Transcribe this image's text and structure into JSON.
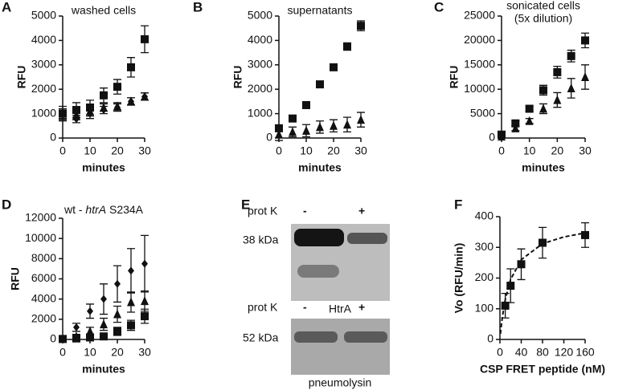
{
  "chart_data": [
    {
      "type": "scatter",
      "panel": "A",
      "title": "washed cells",
      "x_label": "minutes",
      "y_label": "RFU",
      "x": [
        0,
        5,
        10,
        15,
        20,
        25,
        30
      ],
      "xlim": [
        0,
        30
      ],
      "xticks": [
        0,
        10,
        20,
        30
      ],
      "ylim": [
        0,
        5000
      ],
      "yticks": [
        0,
        1000,
        2000,
        3000,
        4000,
        5000
      ],
      "series": [
        {
          "marker": "diamond",
          "color": "#111111",
          "values": [
            950,
            780,
            1000,
            1150,
            1250,
            1500,
            1700
          ],
          "errors": [
            200,
            150,
            200,
            150,
            150,
            150,
            150
          ]
        },
        {
          "marker": "triangle",
          "color": "#111111",
          "values": [
            1000,
            950,
            1100,
            1250,
            1300,
            1500,
            1700
          ],
          "errors": [
            200,
            200,
            200,
            150,
            150,
            150,
            150
          ]
        },
        {
          "marker": "square",
          "color": "#111111",
          "values": [
            1000,
            1150,
            1250,
            1750,
            2100,
            2900,
            4050
          ],
          "errors": [
            300,
            300,
            300,
            300,
            300,
            400,
            550
          ]
        }
      ]
    },
    {
      "type": "scatter",
      "panel": "B",
      "title": "supernatants",
      "x_label": "minutes",
      "y_label": "RFU",
      "x": [
        0,
        5,
        10,
        15,
        20,
        25,
        30
      ],
      "xlim": [
        0,
        30
      ],
      "xticks": [
        0,
        10,
        20,
        30
      ],
      "ylim": [
        0,
        5000
      ],
      "yticks": [
        0,
        1000,
        2000,
        3000,
        4000,
        5000
      ],
      "series": [
        {
          "marker": "triangle",
          "color": "#111111",
          "values": [
            150,
            250,
            300,
            450,
            500,
            550,
            750
          ],
          "errors": [
            250,
            200,
            250,
            250,
            250,
            300,
            300
          ]
        },
        {
          "marker": "square",
          "color": "#111111",
          "values": [
            400,
            800,
            1350,
            2200,
            2900,
            3750,
            4600
          ],
          "errors": [
            100,
            100,
            100,
            100,
            100,
            150,
            200
          ]
        }
      ]
    },
    {
      "type": "scatter",
      "panel": "C",
      "title": "sonicated cells",
      "subtitle": "(5x dilution)",
      "x_label": "minutes",
      "y_label": "RFU",
      "x": [
        0,
        5,
        10,
        15,
        20,
        25,
        30
      ],
      "xlim": [
        0,
        30
      ],
      "xticks": [
        0,
        10,
        20,
        30
      ],
      "ylim": [
        0,
        25000
      ],
      "yticks": [
        0,
        5000,
        10000,
        15000,
        20000,
        25000
      ],
      "series": [
        {
          "marker": "triangle",
          "color": "#111111",
          "values": [
            300,
            2000,
            3500,
            6000,
            7800,
            10200,
            12500
          ],
          "errors": [
            300,
            500,
            500,
            1000,
            1500,
            2000,
            2500
          ]
        },
        {
          "marker": "square",
          "color": "#111111",
          "values": [
            700,
            3000,
            6000,
            9800,
            13500,
            16800,
            20000
          ],
          "errors": [
            300,
            500,
            500,
            1000,
            1200,
            1200,
            1500
          ]
        }
      ]
    },
    {
      "type": "scatter",
      "panel": "D",
      "title": [
        "wt - ",
        "htrA",
        " S234A"
      ],
      "title_styles": [
        "normal",
        "italic",
        "normal"
      ],
      "x_label": "minutes",
      "y_label": "RFU",
      "x": [
        0,
        5,
        10,
        15,
        20,
        25,
        30
      ],
      "xlim": [
        0,
        30
      ],
      "xticks": [
        0,
        10,
        20,
        30
      ],
      "ylim": [
        0,
        12000
      ],
      "yticks": [
        0,
        2000,
        4000,
        6000,
        8000,
        10000,
        12000
      ],
      "series": [
        {
          "marker": "diamond",
          "color": "#111111",
          "values": [
            100,
            1200,
            2800,
            4000,
            5500,
            6800,
            7500
          ],
          "errors": [
            100,
            400,
            700,
            1500,
            1800,
            2200,
            2800
          ]
        },
        {
          "marker": "triangle",
          "color": "#111111",
          "values": [
            50,
            300,
            800,
            1500,
            2500,
            3700,
            3800
          ],
          "errors": [
            50,
            200,
            400,
            600,
            800,
            1000,
            1000
          ]
        },
        {
          "marker": "square",
          "color": "#111111",
          "values": [
            50,
            100,
            200,
            300,
            800,
            1400,
            2300
          ],
          "errors": [
            50,
            100,
            200,
            300,
            400,
            500,
            700
          ]
        }
      ]
    },
    {
      "type": "scatter",
      "panel": "F",
      "x_label": "CSP FRET peptide (nM)",
      "y_label": "Vo (RFU/min)",
      "x": [
        10,
        20,
        40,
        80,
        160
      ],
      "xlim": [
        0,
        160
      ],
      "xticks": [
        0,
        40,
        80,
        120,
        160
      ],
      "ylim": [
        0,
        400
      ],
      "yticks": [
        0,
        100,
        200,
        300,
        400
      ],
      "series": [
        {
          "marker": "square",
          "color": "#111111",
          "values": [
            110,
            175,
            245,
            315,
            340
          ],
          "errors": [
            40,
            55,
            50,
            50,
            40
          ]
        }
      ],
      "fit_curve": {
        "x": [
          1,
          3,
          5,
          10,
          20,
          40,
          80,
          120,
          160
        ],
        "y": [
          18.6,
          51.8,
          78,
          130,
          195,
          260,
          312,
          334,
          347
        ]
      }
    }
  ],
  "blot": {
    "panel": "E",
    "top": {
      "treatment": "prot K",
      "minus": "-",
      "plus": "+",
      "size": "38 kDa",
      "protein": "HtrA"
    },
    "bottom": {
      "treatment": "prot K",
      "minus": "-",
      "plus": "+",
      "size": "52 kDa",
      "protein": "pneumolysin"
    }
  }
}
